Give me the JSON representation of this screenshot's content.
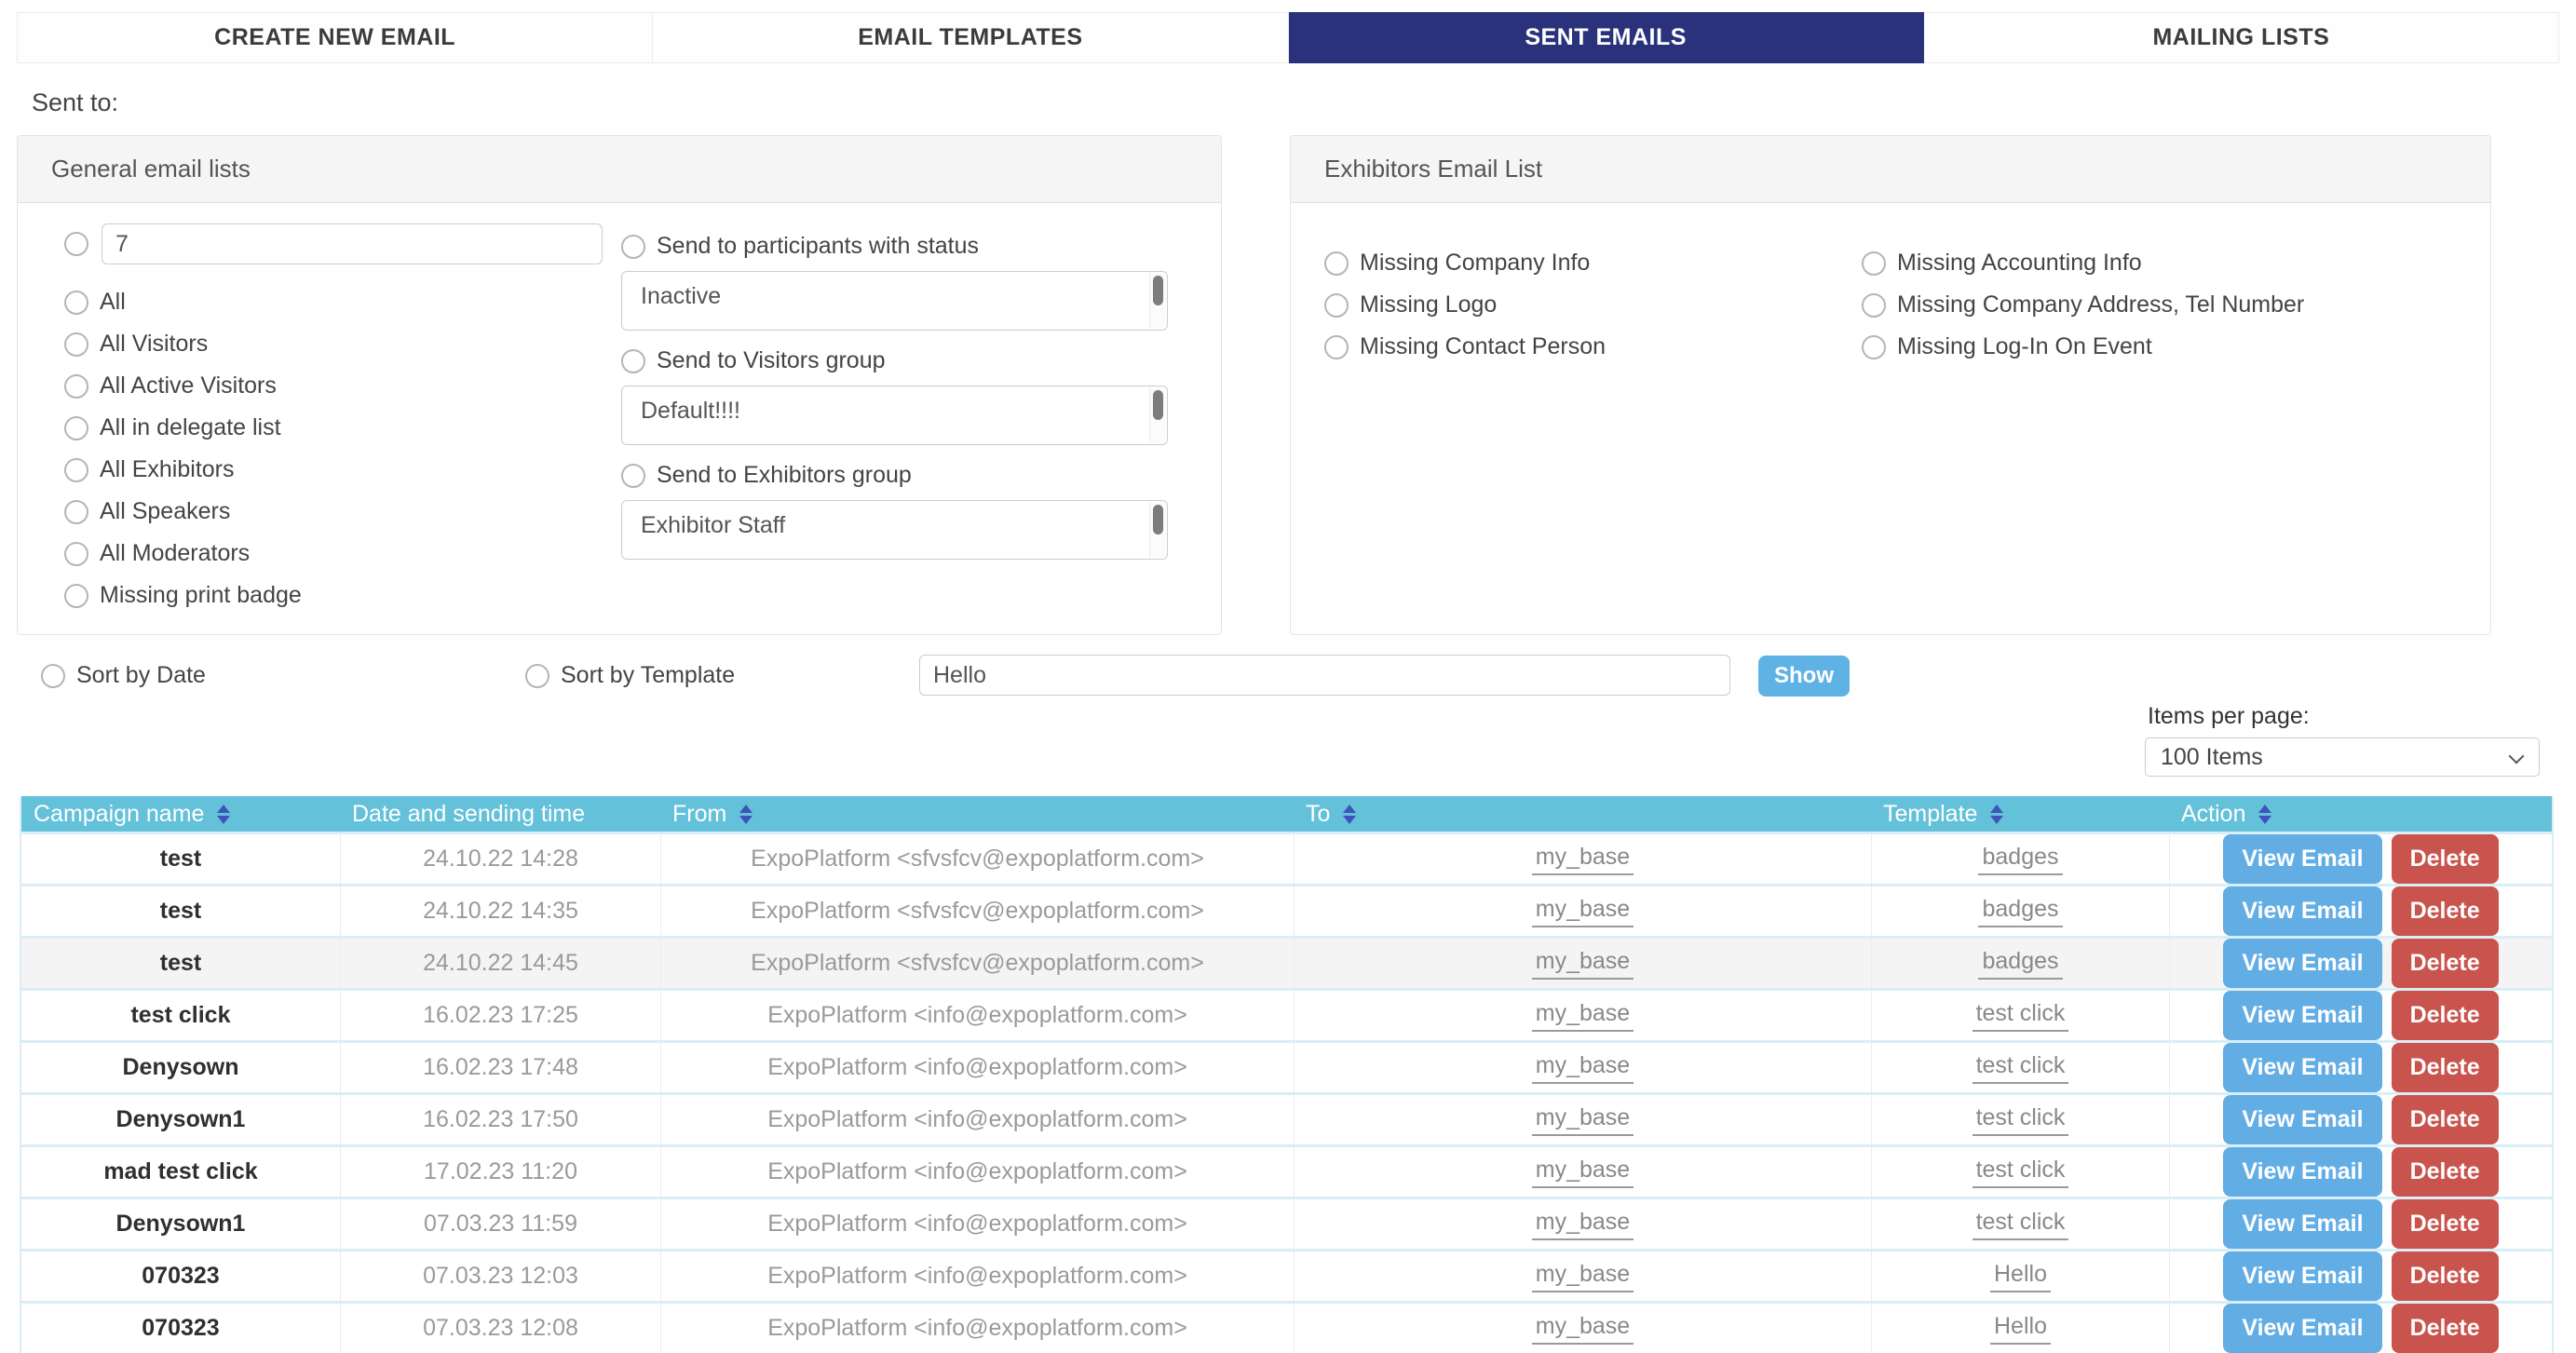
{
  "colors": {
    "active_tab": "#2a327b",
    "table_header": "#64c1da",
    "view_button": "#63ade5",
    "delete_button": "#c9544e",
    "show_button": "#5fb2e4"
  },
  "tabs": [
    {
      "label": "CREATE NEW EMAIL",
      "active": false
    },
    {
      "label": "EMAIL TEMPLATES",
      "active": false
    },
    {
      "label": "SENT EMAILS",
      "active": true
    },
    {
      "label": "MAILING LISTS",
      "active": false
    }
  ],
  "sent_to_label": "Sent to:",
  "general_panel": {
    "title": "General email lists",
    "id_option_value": "7",
    "radio_options": [
      "All",
      "All Visitors",
      "All Active Visitors",
      "All in delegate list",
      "All Exhibitors",
      "All Speakers",
      "All Moderators",
      "Missing print badge"
    ],
    "groups": [
      {
        "label": "Send to participants with status",
        "selected": "Inactive"
      },
      {
        "label": "Send to Visitors group",
        "selected": "Default!!!!"
      },
      {
        "label": "Send to Exhibitors group",
        "selected": "Exhibitor Staff"
      }
    ]
  },
  "exhibitors_panel": {
    "title": "Exhibitors Email List",
    "column1": [
      "Missing Company Info",
      "Missing Logo",
      "Missing Contact Person"
    ],
    "column2": [
      "Missing Accounting Info",
      "Missing Company Address, Tel Number",
      "Missing Log-In On Event"
    ]
  },
  "filter_bar": {
    "sort_by_date": "Sort by Date",
    "sort_by_template": "Sort by Template",
    "search_value": "Hello",
    "show_button": "Show"
  },
  "pagination": {
    "label": "Items per page:",
    "selected": "100 Items"
  },
  "table": {
    "headers": [
      {
        "label": "Campaign name",
        "sortable": true
      },
      {
        "label": "Date and sending time",
        "sortable": false
      },
      {
        "label": "From",
        "sortable": true
      },
      {
        "label": "To",
        "sortable": true
      },
      {
        "label": "Template",
        "sortable": true
      },
      {
        "label": "Action",
        "sortable": true
      }
    ],
    "action_labels": {
      "view": "View Email",
      "delete": "Delete"
    },
    "rows": [
      {
        "campaign": "test",
        "date": "24.10.22 14:28",
        "from": "ExpoPlatform <sfvsfcv@expoplatform.com>",
        "to": "my_base",
        "template": "badges",
        "highlighted": false
      },
      {
        "campaign": "test",
        "date": "24.10.22 14:35",
        "from": "ExpoPlatform <sfvsfcv@expoplatform.com>",
        "to": "my_base",
        "template": "badges",
        "highlighted": false
      },
      {
        "campaign": "test",
        "date": "24.10.22 14:45",
        "from": "ExpoPlatform <sfvsfcv@expoplatform.com>",
        "to": "my_base",
        "template": "badges",
        "highlighted": true
      },
      {
        "campaign": "test click",
        "date": "16.02.23 17:25",
        "from": "ExpoPlatform <info@expoplatform.com>",
        "to": "my_base",
        "template": "test click",
        "highlighted": false
      },
      {
        "campaign": "Denysown",
        "date": "16.02.23 17:48",
        "from": "ExpoPlatform <info@expoplatform.com>",
        "to": "my_base",
        "template": "test click",
        "highlighted": false
      },
      {
        "campaign": "Denysown1",
        "date": "16.02.23 17:50",
        "from": "ExpoPlatform <info@expoplatform.com>",
        "to": "my_base",
        "template": "test click",
        "highlighted": false
      },
      {
        "campaign": "mad test click",
        "date": "17.02.23 11:20",
        "from": "ExpoPlatform <info@expoplatform.com>",
        "to": "my_base",
        "template": "test click",
        "highlighted": false
      },
      {
        "campaign": "Denysown1",
        "date": "07.03.23 11:59",
        "from": "ExpoPlatform <info@expoplatform.com>",
        "to": "my_base",
        "template": "test click",
        "highlighted": false
      },
      {
        "campaign": "070323",
        "date": "07.03.23 12:03",
        "from": "ExpoPlatform <info@expoplatform.com>",
        "to": "my_base",
        "template": "Hello",
        "highlighted": false
      },
      {
        "campaign": "070323",
        "date": "07.03.23 12:08",
        "from": "ExpoPlatform <info@expoplatform.com>",
        "to": "my_base",
        "template": "Hello",
        "highlighted": false
      }
    ]
  }
}
